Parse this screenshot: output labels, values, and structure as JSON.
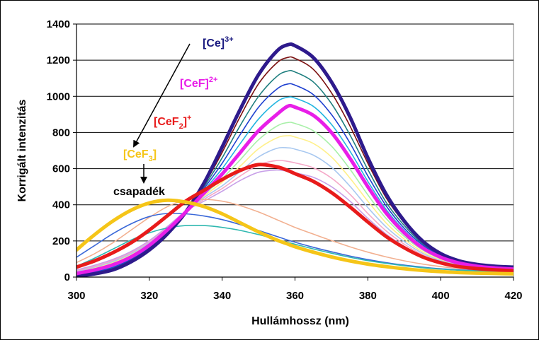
{
  "chart_data": {
    "type": "line",
    "title": "",
    "xlabel": "Hullámhossz (nm)",
    "ylabel": "Korrigált intenzitás",
    "xlim": [
      300,
      420
    ],
    "ylim": [
      0,
      1400
    ],
    "x_ticks": [
      300,
      320,
      340,
      360,
      380,
      400,
      420
    ],
    "y_ticks": [
      0,
      200,
      400,
      600,
      800,
      1000,
      1200,
      1400
    ],
    "x": [
      300,
      305,
      310,
      315,
      320,
      325,
      330,
      335,
      340,
      345,
      350,
      355,
      358,
      360,
      365,
      370,
      375,
      380,
      385,
      390,
      395,
      400,
      405,
      410,
      415,
      420
    ],
    "series": [
      {
        "name": "[Ce]3+",
        "color": "#2E1A8C",
        "width": 5,
        "values": [
          5,
          18,
          40,
          85,
          150,
          240,
          360,
          520,
          720,
          930,
          1120,
          1250,
          1285,
          1280,
          1215,
          1080,
          890,
          660,
          460,
          310,
          200,
          130,
          90,
          70,
          60,
          55
        ]
      },
      {
        "name": "s2",
        "color": "#7B1010",
        "width": 1.6,
        "values": [
          8,
          22,
          45,
          90,
          155,
          245,
          360,
          510,
          690,
          890,
          1070,
          1185,
          1215,
          1210,
          1150,
          1020,
          840,
          630,
          440,
          300,
          195,
          128,
          88,
          68,
          58,
          52
        ]
      },
      {
        "name": "s3",
        "color": "#1F7F7F",
        "width": 1.6,
        "values": [
          10,
          26,
          50,
          95,
          160,
          250,
          360,
          500,
          660,
          840,
          1000,
          1110,
          1140,
          1135,
          1080,
          960,
          790,
          595,
          415,
          285,
          185,
          122,
          85,
          66,
          56,
          50
        ]
      },
      {
        "name": "s4",
        "color": "#1E40D0",
        "width": 1.6,
        "values": [
          12,
          30,
          55,
          100,
          165,
          255,
          360,
          490,
          630,
          790,
          940,
          1040,
          1068,
          1062,
          1010,
          900,
          745,
          560,
          395,
          270,
          178,
          118,
          82,
          64,
          54,
          48
        ]
      },
      {
        "name": "s5",
        "color": "#22B5E0",
        "width": 1.6,
        "values": [
          15,
          34,
          60,
          105,
          170,
          260,
          360,
          480,
          600,
          740,
          875,
          970,
          995,
          990,
          945,
          845,
          700,
          530,
          375,
          258,
          170,
          114,
          80,
          62,
          52,
          46
        ]
      },
      {
        "name": "[CeF]2+",
        "color": "#E81EE8",
        "width": 5,
        "values": [
          20,
          40,
          68,
          112,
          176,
          262,
          360,
          465,
          570,
          690,
          810,
          900,
          945,
          940,
          895,
          800,
          660,
          500,
          355,
          245,
          162,
          110,
          78,
          60,
          50,
          44
        ]
      },
      {
        "name": "s7",
        "color": "#A8F0A8",
        "width": 1.6,
        "values": [
          24,
          46,
          74,
          118,
          180,
          266,
          362,
          455,
          545,
          650,
          760,
          835,
          855,
          850,
          810,
          725,
          600,
          455,
          325,
          225,
          150,
          102,
          73,
          57,
          47,
          42
        ]
      },
      {
        "name": "s8",
        "color": "#FFF08A",
        "width": 1.6,
        "values": [
          28,
          50,
          80,
          124,
          185,
          268,
          362,
          448,
          525,
          615,
          710,
          770,
          782,
          775,
          740,
          665,
          550,
          420,
          300,
          210,
          140,
          96,
          70,
          55,
          46,
          40
        ]
      },
      {
        "name": "s9",
        "color": "#A8C8F0",
        "width": 1.6,
        "values": [
          32,
          56,
          86,
          130,
          190,
          272,
          363,
          440,
          505,
          585,
          665,
          712,
          715,
          708,
          675,
          608,
          505,
          385,
          278,
          196,
          132,
          91,
          66,
          53,
          44,
          38
        ]
      },
      {
        "name": "s10",
        "color": "#F5A8C8",
        "width": 1.6,
        "values": [
          36,
          60,
          92,
          136,
          196,
          276,
          364,
          430,
          490,
          560,
          620,
          645,
          640,
          632,
          605,
          548,
          460,
          352,
          256,
          182,
          124,
          86,
          63,
          51,
          43,
          37
        ]
      },
      {
        "name": "s11",
        "color": "#C8A0E8",
        "width": 1.6,
        "values": [
          40,
          66,
          98,
          142,
          202,
          280,
          365,
          420,
          475,
          535,
          580,
          592,
          585,
          577,
          552,
          500,
          422,
          325,
          238,
          170,
          117,
          82,
          60,
          49,
          41,
          36
        ]
      },
      {
        "name": "[CeF2]+",
        "color": "#E81B1B",
        "width": 5,
        "values": [
          55,
          90,
          135,
          190,
          260,
          340,
          420,
          480,
          540,
          590,
          622,
          610,
          590,
          572,
          530,
          468,
          390,
          305,
          225,
          162,
          112,
          79,
          58,
          47,
          40,
          35
        ]
      },
      {
        "name": "s13",
        "color": "#F2B090",
        "width": 1.6,
        "values": [
          80,
          130,
          190,
          260,
          330,
          390,
          425,
          430,
          420,
          395,
          360,
          318,
          292,
          275,
          238,
          202,
          168,
          138,
          112,
          90,
          72,
          58,
          48,
          42,
          37,
          33
        ]
      },
      {
        "name": "s14",
        "color": "#3A68D8",
        "width": 1.6,
        "values": [
          110,
          175,
          240,
          295,
          335,
          352,
          350,
          338,
          318,
          290,
          258,
          225,
          205,
          193,
          165,
          140,
          117,
          97,
          80,
          66,
          55,
          46,
          40,
          36,
          33,
          30
        ]
      },
      {
        "name": "s15",
        "color": "#2FB8B0",
        "width": 1.6,
        "values": [
          60,
          105,
          155,
          205,
          245,
          272,
          285,
          285,
          275,
          258,
          235,
          208,
          192,
          182,
          156,
          132,
          110,
          91,
          76,
          63,
          52,
          44,
          38,
          34,
          31,
          29
        ]
      },
      {
        "name": "[CeF3]",
        "color": "#F5C518",
        "width": 5,
        "values": [
          150,
          235,
          310,
          370,
          410,
          425,
          415,
          390,
          350,
          300,
          250,
          205,
          183,
          168,
          138,
          112,
          90,
          72,
          58,
          46,
          37,
          30,
          25,
          22,
          20,
          18
        ]
      }
    ],
    "annotations": {
      "ce3": {
        "base": "[Ce]",
        "sup": "3+",
        "color": "#1A1A80"
      },
      "cef2p": {
        "base": "[CeF]",
        "sup": "2+",
        "color": "#E81EE8"
      },
      "cef2": {
        "base1": "[CeF",
        "sub": "2",
        "base2": "]",
        "sup": "+",
        "color": "#E81B1B"
      },
      "cef3": {
        "base1": "[CeF",
        "sub": "3",
        "base2": "]",
        "color": "#F5C518"
      },
      "precip": {
        "text": "csapadék",
        "color": "#000000"
      }
    }
  }
}
